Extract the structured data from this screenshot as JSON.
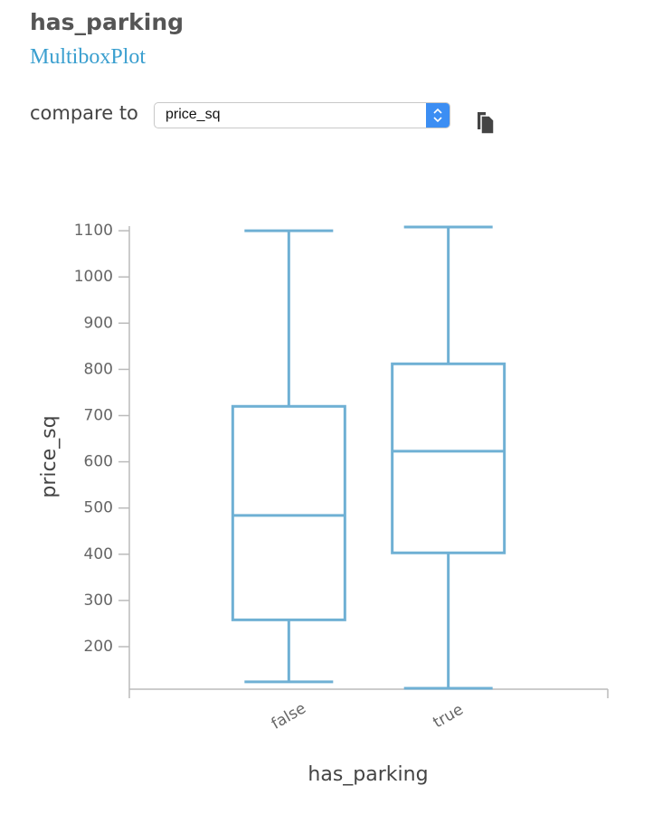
{
  "header": {
    "title": "has_parking",
    "subtitle": "MultiboxPlot"
  },
  "controls": {
    "compare_label": "compare to",
    "selected": "price_sq"
  },
  "chart_data": {
    "type": "box",
    "x_label": "has_parking",
    "y_label": "price_sq",
    "categories": [
      "false",
      "true"
    ],
    "color": "#6fb0d4",
    "ylim": [
      108,
      1110
    ],
    "yticks": [
      200,
      300,
      400,
      500,
      600,
      700,
      800,
      900,
      1000,
      1100
    ],
    "boxes": [
      {
        "whisker_low": 124,
        "q1": 258,
        "median": 484,
        "q3": 720,
        "whisker_high": 1100
      },
      {
        "whisker_low": 110,
        "q1": 403,
        "median": 623,
        "q3": 812,
        "whisker_high": 1108
      }
    ]
  }
}
